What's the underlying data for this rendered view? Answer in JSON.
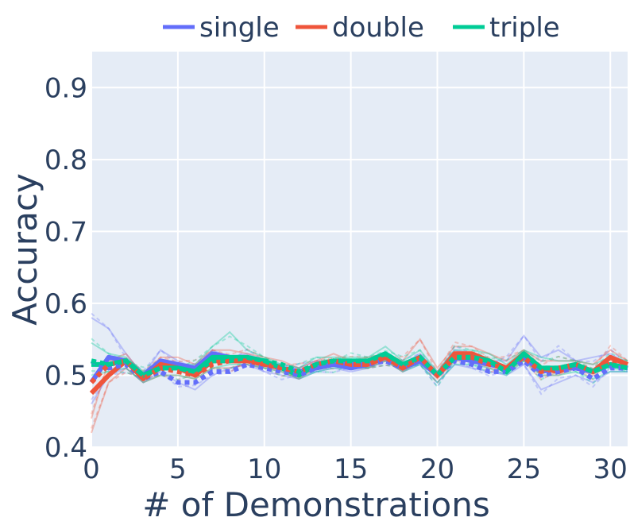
{
  "chart_data": {
    "type": "line",
    "xlabel": "# of Demonstrations",
    "ylabel": "Accuracy",
    "xlim": [
      0,
      31
    ],
    "ylim": [
      0.4,
      0.95
    ],
    "xticks": [
      "0",
      "5",
      "10",
      "15",
      "20",
      "25",
      "30"
    ],
    "yticks": [
      "0.4",
      "0.5",
      "0.6",
      "0.7",
      "0.8",
      "0.9"
    ],
    "grid": true,
    "legend_position": "top",
    "x": [
      0,
      1,
      2,
      3,
      4,
      5,
      6,
      7,
      8,
      9,
      10,
      11,
      12,
      13,
      14,
      15,
      16,
      17,
      18,
      19,
      20,
      21,
      22,
      23,
      24,
      25,
      26,
      27,
      28,
      29,
      30,
      31
    ],
    "series": [
      {
        "name": "single",
        "color": "#636efa",
        "mean_solid": [
          0.49,
          0.525,
          0.52,
          0.5,
          0.52,
          0.515,
          0.51,
          0.53,
          0.525,
          0.525,
          0.515,
          0.51,
          0.505,
          0.51,
          0.515,
          0.51,
          0.515,
          0.525,
          0.51,
          0.52,
          0.5,
          0.525,
          0.52,
          0.515,
          0.51,
          0.525,
          0.505,
          0.51,
          0.51,
          0.505,
          0.515,
          0.51
        ],
        "mean_dotted": [
          0.52,
          0.51,
          0.515,
          0.495,
          0.505,
          0.49,
          0.49,
          0.505,
          0.505,
          0.515,
          0.51,
          0.505,
          0.5,
          0.51,
          0.515,
          0.515,
          0.515,
          0.52,
          0.51,
          0.52,
          0.5,
          0.52,
          0.515,
          0.505,
          0.505,
          0.52,
          0.5,
          0.505,
          0.51,
          0.495,
          0.51,
          0.51
        ],
        "runs": [
          [
            0.58,
            0.565,
            0.53,
            0.5,
            0.535,
            0.52,
            0.51,
            0.535,
            0.525,
            0.53,
            0.52,
            0.515,
            0.51,
            0.52,
            0.52,
            0.515,
            0.52,
            0.53,
            0.515,
            0.53,
            0.505,
            0.535,
            0.53,
            0.52,
            0.52,
            0.555,
            0.525,
            0.535,
            0.52,
            0.525,
            0.53,
            0.515
          ],
          [
            0.46,
            0.5,
            0.51,
            0.49,
            0.505,
            0.49,
            0.48,
            0.5,
            0.51,
            0.515,
            0.505,
            0.5,
            0.495,
            0.505,
            0.51,
            0.505,
            0.51,
            0.52,
            0.505,
            0.515,
            0.49,
            0.515,
            0.51,
            0.505,
            0.5,
            0.515,
            0.48,
            0.49,
            0.5,
            0.49,
            0.505,
            0.505
          ]
        ]
      },
      {
        "name": "double",
        "color": "#ef553b",
        "mean_solid": [
          0.475,
          0.5,
          0.52,
          0.495,
          0.515,
          0.51,
          0.5,
          0.52,
          0.52,
          0.52,
          0.515,
          0.51,
          0.5,
          0.515,
          0.52,
          0.515,
          0.515,
          0.525,
          0.51,
          0.525,
          0.5,
          0.53,
          0.53,
          0.52,
          0.51,
          0.53,
          0.51,
          0.505,
          0.515,
          0.505,
          0.525,
          0.515
        ],
        "mean_dotted": [
          0.49,
          0.515,
          0.52,
          0.495,
          0.51,
          0.505,
          0.5,
          0.515,
          0.52,
          0.52,
          0.515,
          0.51,
          0.505,
          0.515,
          0.52,
          0.515,
          0.515,
          0.525,
          0.51,
          0.525,
          0.5,
          0.525,
          0.525,
          0.515,
          0.51,
          0.525,
          0.505,
          0.51,
          0.515,
          0.505,
          0.52,
          0.515
        ],
        "runs": [
          [
            0.44,
            0.52,
            0.53,
            0.5,
            0.525,
            0.525,
            0.515,
            0.535,
            0.535,
            0.53,
            0.525,
            0.52,
            0.51,
            0.52,
            0.53,
            0.52,
            0.525,
            0.53,
            0.52,
            0.55,
            0.51,
            0.54,
            0.54,
            0.53,
            0.52,
            0.535,
            0.52,
            0.52,
            0.52,
            0.515,
            0.535,
            0.52
          ],
          [
            0.42,
            0.49,
            0.51,
            0.49,
            0.5,
            0.5,
            0.495,
            0.51,
            0.51,
            0.515,
            0.51,
            0.505,
            0.495,
            0.51,
            0.515,
            0.51,
            0.51,
            0.52,
            0.505,
            0.52,
            0.495,
            0.52,
            0.52,
            0.51,
            0.505,
            0.52,
            0.5,
            0.5,
            0.51,
            0.5,
            0.515,
            0.51
          ]
        ]
      },
      {
        "name": "triple",
        "color": "#00cc96",
        "mean_solid": [
          0.515,
          0.515,
          0.52,
          0.5,
          0.51,
          0.51,
          0.505,
          0.525,
          0.525,
          0.525,
          0.52,
          0.51,
          0.5,
          0.515,
          0.52,
          0.52,
          0.52,
          0.53,
          0.515,
          0.525,
          0.5,
          0.525,
          0.525,
          0.52,
          0.505,
          0.53,
          0.51,
          0.51,
          0.515,
          0.505,
          0.515,
          0.51
        ],
        "mean_dotted": [
          0.52,
          0.515,
          0.52,
          0.5,
          0.51,
          0.51,
          0.505,
          0.52,
          0.52,
          0.525,
          0.52,
          0.515,
          0.505,
          0.515,
          0.52,
          0.52,
          0.52,
          0.53,
          0.515,
          0.525,
          0.5,
          0.525,
          0.525,
          0.52,
          0.505,
          0.53,
          0.51,
          0.51,
          0.515,
          0.505,
          0.515,
          0.51
        ],
        "runs": [
          [
            0.545,
            0.53,
            0.525,
            0.505,
            0.52,
            0.515,
            0.515,
            0.54,
            0.56,
            0.535,
            0.525,
            0.515,
            0.51,
            0.525,
            0.525,
            0.525,
            0.525,
            0.54,
            0.52,
            0.535,
            0.505,
            0.535,
            0.535,
            0.53,
            0.515,
            0.535,
            0.525,
            0.52,
            0.52,
            0.515,
            0.525,
            0.52
          ],
          [
            0.5,
            0.505,
            0.51,
            0.49,
            0.5,
            0.5,
            0.495,
            0.51,
            0.515,
            0.515,
            0.51,
            0.505,
            0.495,
            0.505,
            0.51,
            0.51,
            0.51,
            0.52,
            0.505,
            0.515,
            0.49,
            0.515,
            0.515,
            0.51,
            0.5,
            0.52,
            0.5,
            0.5,
            0.505,
            0.495,
            0.505,
            0.505
          ]
        ]
      }
    ]
  }
}
